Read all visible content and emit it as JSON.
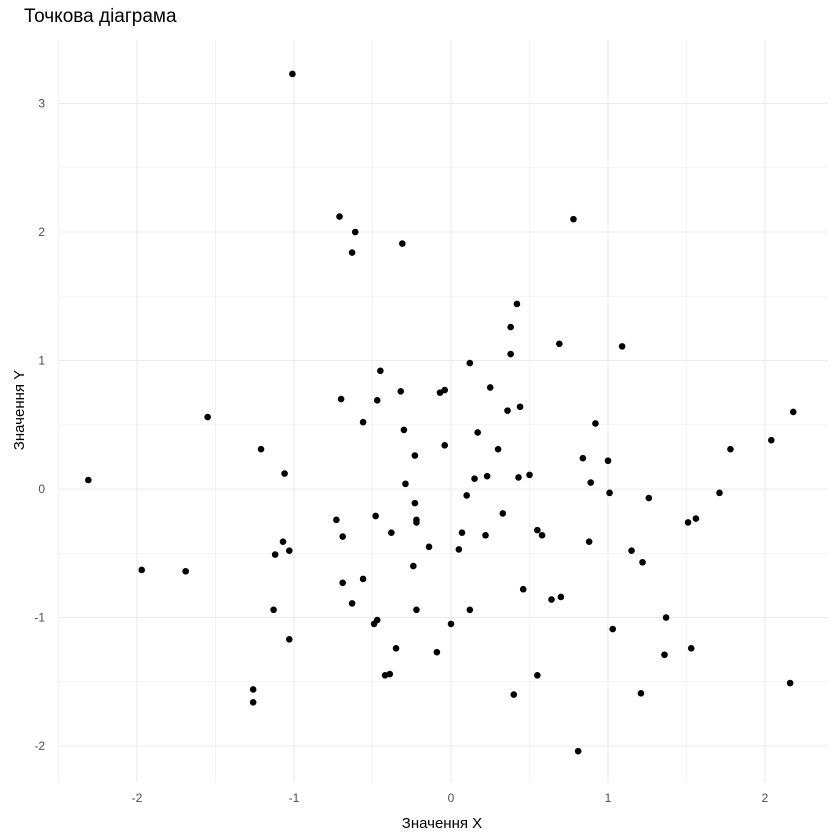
{
  "chart_data": {
    "type": "scatter",
    "title": "Точкова діаграма",
    "xlabel": "Значення X",
    "ylabel": "Значення Y",
    "xlim": [
      -2.5,
      2.4
    ],
    "ylim": [
      -2.3,
      3.4
    ],
    "x_ticks": [
      -2,
      -1,
      0,
      1,
      2
    ],
    "y_ticks": [
      -2,
      -1,
      0,
      1,
      2,
      3
    ],
    "x_tick_labels": [
      "-2",
      "-1",
      "0",
      "1",
      "2"
    ],
    "y_tick_labels": [
      "-2",
      "-1",
      "0",
      "1",
      "2",
      "3"
    ],
    "grid": true,
    "point_color": "#000000",
    "grid_color": "#ebebeb",
    "points": [
      {
        "x": -1.01,
        "y": 3.23
      },
      {
        "x": -0.71,
        "y": 2.12
      },
      {
        "x": -0.61,
        "y": 2.0
      },
      {
        "x": -0.63,
        "y": 1.84
      },
      {
        "x": -0.31,
        "y": 1.91
      },
      {
        "x": 0.78,
        "y": 2.1
      },
      {
        "x": 0.42,
        "y": 1.44
      },
      {
        "x": 0.38,
        "y": 1.26
      },
      {
        "x": 0.69,
        "y": 1.13
      },
      {
        "x": 1.09,
        "y": 1.11
      },
      {
        "x": 0.38,
        "y": 1.05
      },
      {
        "x": 0.12,
        "y": 0.98
      },
      {
        "x": -0.45,
        "y": 0.92
      },
      {
        "x": -0.32,
        "y": 0.76
      },
      {
        "x": -0.07,
        "y": 0.75
      },
      {
        "x": -0.04,
        "y": 0.77
      },
      {
        "x": 0.25,
        "y": 0.79
      },
      {
        "x": -0.7,
        "y": 0.7
      },
      {
        "x": -0.47,
        "y": 0.69
      },
      {
        "x": 0.44,
        "y": 0.64
      },
      {
        "x": 0.36,
        "y": 0.61
      },
      {
        "x": -1.55,
        "y": 0.56
      },
      {
        "x": -0.56,
        "y": 0.52
      },
      {
        "x": 0.92,
        "y": 0.51
      },
      {
        "x": 2.18,
        "y": 0.6
      },
      {
        "x": -0.3,
        "y": 0.46
      },
      {
        "x": 0.17,
        "y": 0.44
      },
      {
        "x": 2.04,
        "y": 0.38
      },
      {
        "x": -0.04,
        "y": 0.34
      },
      {
        "x": -1.21,
        "y": 0.31
      },
      {
        "x": 1.78,
        "y": 0.31
      },
      {
        "x": 0.3,
        "y": 0.31
      },
      {
        "x": -0.23,
        "y": 0.26
      },
      {
        "x": 0.84,
        "y": 0.24
      },
      {
        "x": 1.0,
        "y": 0.22
      },
      {
        "x": -1.06,
        "y": 0.12
      },
      {
        "x": 0.5,
        "y": 0.11
      },
      {
        "x": 0.23,
        "y": 0.1
      },
      {
        "x": 0.43,
        "y": 0.09
      },
      {
        "x": 0.15,
        "y": 0.08
      },
      {
        "x": -2.31,
        "y": 0.07
      },
      {
        "x": 0.89,
        "y": 0.05
      },
      {
        "x": -0.29,
        "y": 0.04
      },
      {
        "x": 1.01,
        "y": -0.03
      },
      {
        "x": 1.71,
        "y": -0.03
      },
      {
        "x": 0.1,
        "y": -0.05
      },
      {
        "x": 1.26,
        "y": -0.07
      },
      {
        "x": -0.23,
        "y": -0.11
      },
      {
        "x": 0.33,
        "y": -0.19
      },
      {
        "x": -0.48,
        "y": -0.21
      },
      {
        "x": -0.73,
        "y": -0.24
      },
      {
        "x": -0.22,
        "y": -0.24
      },
      {
        "x": -0.22,
        "y": -0.26
      },
      {
        "x": 1.56,
        "y": -0.23
      },
      {
        "x": 1.51,
        "y": -0.26
      },
      {
        "x": 0.55,
        "y": -0.32
      },
      {
        "x": 0.07,
        "y": -0.34
      },
      {
        "x": -0.38,
        "y": -0.34
      },
      {
        "x": -0.69,
        "y": -0.37
      },
      {
        "x": 0.22,
        "y": -0.36
      },
      {
        "x": 0.58,
        "y": -0.36
      },
      {
        "x": -1.07,
        "y": -0.41
      },
      {
        "x": 0.88,
        "y": -0.41
      },
      {
        "x": -0.14,
        "y": -0.45
      },
      {
        "x": 0.05,
        "y": -0.47
      },
      {
        "x": -1.03,
        "y": -0.48
      },
      {
        "x": 1.15,
        "y": -0.48
      },
      {
        "x": -1.12,
        "y": -0.51
      },
      {
        "x": 1.22,
        "y": -0.57
      },
      {
        "x": -0.24,
        "y": -0.6
      },
      {
        "x": -1.97,
        "y": -0.63
      },
      {
        "x": -1.69,
        "y": -0.64
      },
      {
        "x": -0.56,
        "y": -0.7
      },
      {
        "x": -0.69,
        "y": -0.73
      },
      {
        "x": 0.46,
        "y": -0.78
      },
      {
        "x": 0.7,
        "y": -0.84
      },
      {
        "x": 0.64,
        "y": -0.86
      },
      {
        "x": -0.63,
        "y": -0.89
      },
      {
        "x": -1.13,
        "y": -0.94
      },
      {
        "x": -0.22,
        "y": -0.94
      },
      {
        "x": 0.12,
        "y": -0.94
      },
      {
        "x": 1.37,
        "y": -1.0
      },
      {
        "x": -0.47,
        "y": -1.02
      },
      {
        "x": -0.49,
        "y": -1.05
      },
      {
        "x": 0.0,
        "y": -1.05
      },
      {
        "x": 1.03,
        "y": -1.09
      },
      {
        "x": -1.03,
        "y": -1.17
      },
      {
        "x": -0.35,
        "y": -1.24
      },
      {
        "x": 1.53,
        "y": -1.24
      },
      {
        "x": -0.09,
        "y": -1.27
      },
      {
        "x": 1.36,
        "y": -1.29
      },
      {
        "x": -0.39,
        "y": -1.44
      },
      {
        "x": -0.42,
        "y": -1.45
      },
      {
        "x": 0.55,
        "y": -1.45
      },
      {
        "x": 2.16,
        "y": -1.51
      },
      {
        "x": -1.26,
        "y": -1.56
      },
      {
        "x": 1.21,
        "y": -1.59
      },
      {
        "x": 0.4,
        "y": -1.6
      },
      {
        "x": -1.26,
        "y": -1.66
      },
      {
        "x": 0.81,
        "y": -2.04
      }
    ]
  }
}
